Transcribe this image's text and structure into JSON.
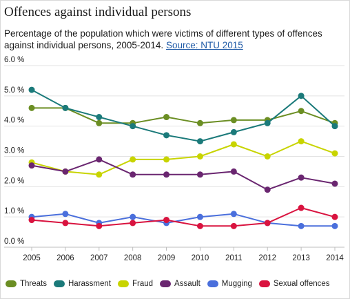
{
  "header": {
    "title": "Offences against individual persons",
    "subtitle": "Percentage of the population which were victims of different types of offences against individual persons, 2005-2014.",
    "source_link": "Source: NTU 2015"
  },
  "chart_data": {
    "type": "line",
    "x": [
      "2005",
      "2006",
      "2007",
      "2008",
      "2009",
      "2010",
      "2011",
      "2012",
      "2013",
      "2014"
    ],
    "ylim": [
      0,
      6
    ],
    "yticks": [
      "0.0 %",
      "1.0 %",
      "2.0 %",
      "3.0 %",
      "4.0 %",
      "5.0 %",
      "6.0 %"
    ],
    "grid": "horizontal",
    "legend_position": "bottom",
    "series": [
      {
        "name": "Threats",
        "color": "#6b8e23",
        "values": [
          4.6,
          4.6,
          4.1,
          4.1,
          4.3,
          4.1,
          4.2,
          4.2,
          4.5,
          4.1
        ]
      },
      {
        "name": "Harassment",
        "color": "#1b7a7a",
        "values": [
          5.2,
          4.6,
          4.3,
          4.0,
          3.7,
          3.5,
          3.8,
          4.1,
          5.0,
          4.0
        ]
      },
      {
        "name": "Fraud",
        "color": "#c8d400",
        "values": [
          2.8,
          2.5,
          2.4,
          2.9,
          2.9,
          3.0,
          3.4,
          3.0,
          3.5,
          3.1
        ]
      },
      {
        "name": "Assault",
        "color": "#6a2670",
        "values": [
          2.7,
          2.5,
          2.9,
          2.4,
          2.4,
          2.4,
          2.5,
          1.9,
          2.3,
          2.1
        ]
      },
      {
        "name": "Mugging",
        "color": "#4a6fdc",
        "values": [
          1.0,
          1.1,
          0.8,
          1.0,
          0.8,
          1.0,
          1.1,
          0.8,
          0.7,
          0.7
        ]
      },
      {
        "name": "Sexual offences",
        "color": "#d9133f",
        "values": [
          0.9,
          0.8,
          0.7,
          0.8,
          0.9,
          0.7,
          0.7,
          0.8,
          1.3,
          1.0
        ]
      }
    ]
  }
}
